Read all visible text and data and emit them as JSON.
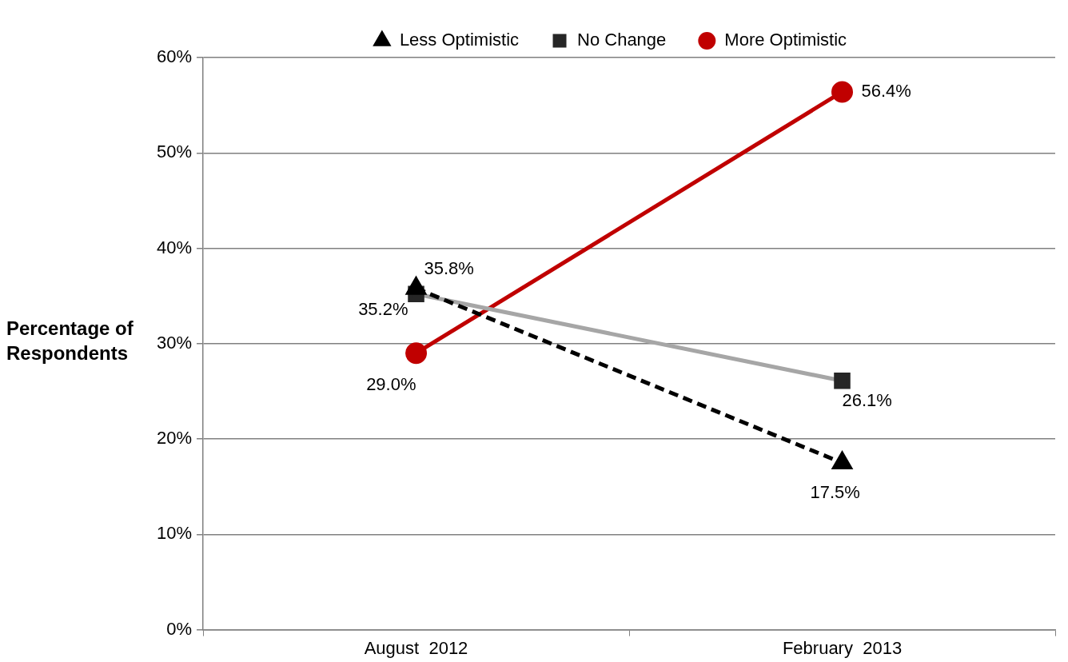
{
  "chart_data": {
    "type": "line",
    "ylabel": "Percentage of Respondents",
    "categories": [
      "August  2012",
      "February  2013"
    ],
    "series": [
      {
        "name": "Less Optimistic",
        "color": "#000000",
        "line_style": "dashed",
        "marker": "triangle",
        "values": [
          35.8,
          17.5
        ],
        "value_labels": [
          "35.8%",
          "17.5%"
        ]
      },
      {
        "name": "No Change",
        "color": "#a6a6a6",
        "colors": [
          "#262626",
          "#262626"
        ],
        "marker": "square",
        "values": [
          35.2,
          26.1
        ],
        "value_labels": [
          "35.2%",
          "26.1%"
        ]
      },
      {
        "name": "More Optimistic",
        "color": "#c00000",
        "marker": "circle",
        "values": [
          29.0,
          56.4
        ],
        "value_labels": [
          "29.0%",
          "56.4%"
        ]
      }
    ],
    "ylim": [
      0,
      60
    ],
    "yticks": [
      {
        "value": 0,
        "label": "0%"
      },
      {
        "value": 10,
        "label": "10%"
      },
      {
        "value": 20,
        "label": "20%"
      },
      {
        "value": 30,
        "label": "30%"
      },
      {
        "value": 40,
        "label": "40%"
      },
      {
        "value": 50,
        "label": "50%"
      },
      {
        "value": 60,
        "label": "60%"
      }
    ],
    "grid": "y",
    "legend": "top"
  }
}
